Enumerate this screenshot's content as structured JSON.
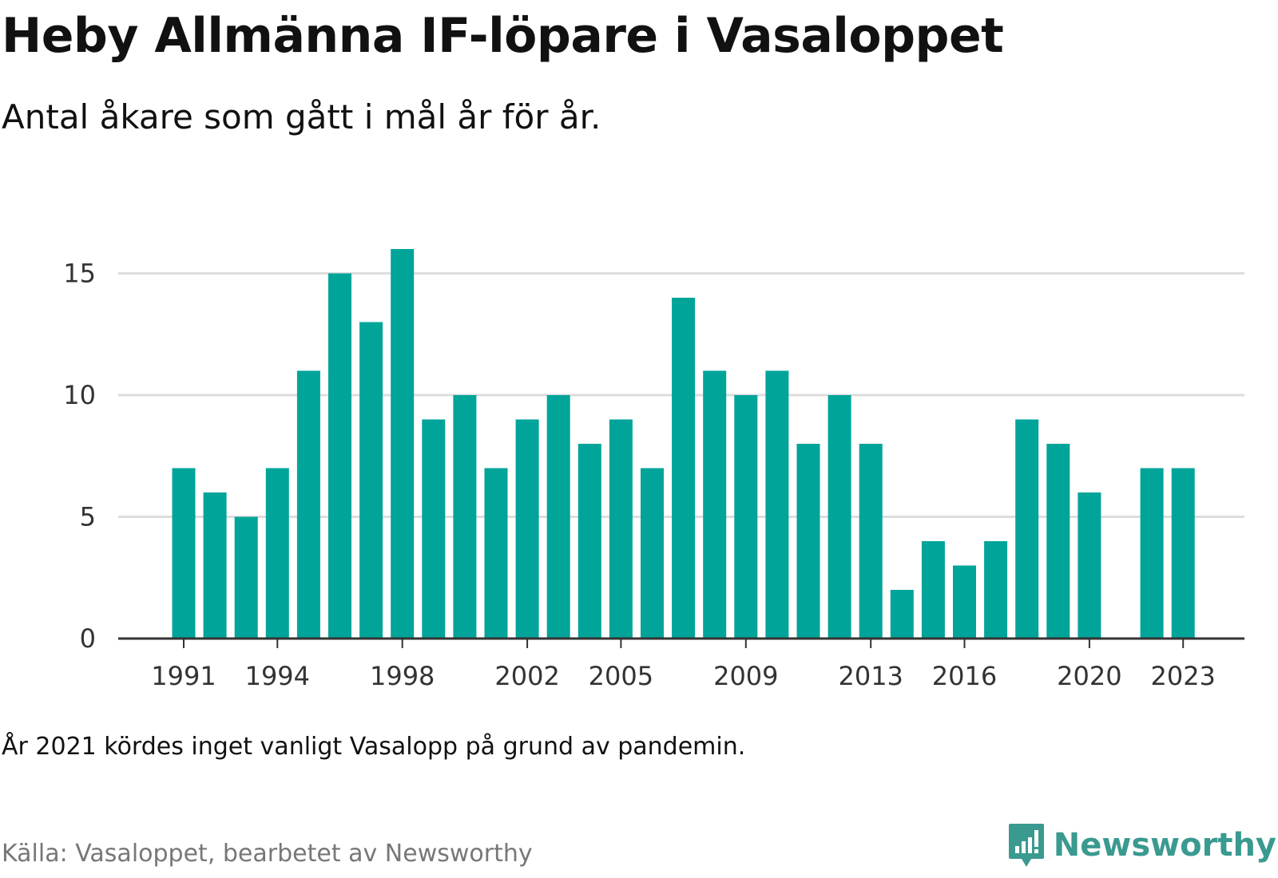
{
  "title": "Heby Allmänna IF-löpare i Vasaloppet",
  "subtitle": "Antal åkare som gått i mål år för år.",
  "note": "År 2021 kördes inget vanligt Vasalopp på grund av pandemin.",
  "source": "Källa: Vasaloppet, bearbetet av Newsworthy",
  "brand": {
    "name": "Newsworthy",
    "icon": "newsworthy-logo-icon"
  },
  "colors": {
    "bar": "#00a499",
    "grid": "#dddddd",
    "axis": "#333333",
    "brand": "#3a9a90"
  },
  "chart_data": {
    "type": "bar",
    "x": [
      1991,
      1992,
      1993,
      1994,
      1995,
      1996,
      1997,
      1998,
      1999,
      2000,
      2001,
      2002,
      2003,
      2004,
      2005,
      2006,
      2007,
      2008,
      2009,
      2010,
      2011,
      2012,
      2013,
      2014,
      2015,
      2016,
      2017,
      2018,
      2019,
      2020,
      2021,
      2022,
      2023
    ],
    "values": [
      7,
      6,
      5,
      7,
      11,
      15,
      13,
      16,
      9,
      10,
      7,
      9,
      10,
      8,
      9,
      7,
      14,
      11,
      10,
      11,
      8,
      10,
      8,
      2,
      4,
      3,
      4,
      9,
      8,
      6,
      null,
      7,
      7
    ],
    "x_ticks": [
      "1991",
      "1994",
      "1998",
      "2002",
      "2005",
      "2009",
      "2013",
      "2016",
      "2020",
      "2023"
    ],
    "y_ticks": [
      "0",
      "5",
      "10",
      "15"
    ],
    "ylim": [
      0,
      16
    ],
    "grid": "horizontal",
    "xlabel": "",
    "ylabel": ""
  }
}
